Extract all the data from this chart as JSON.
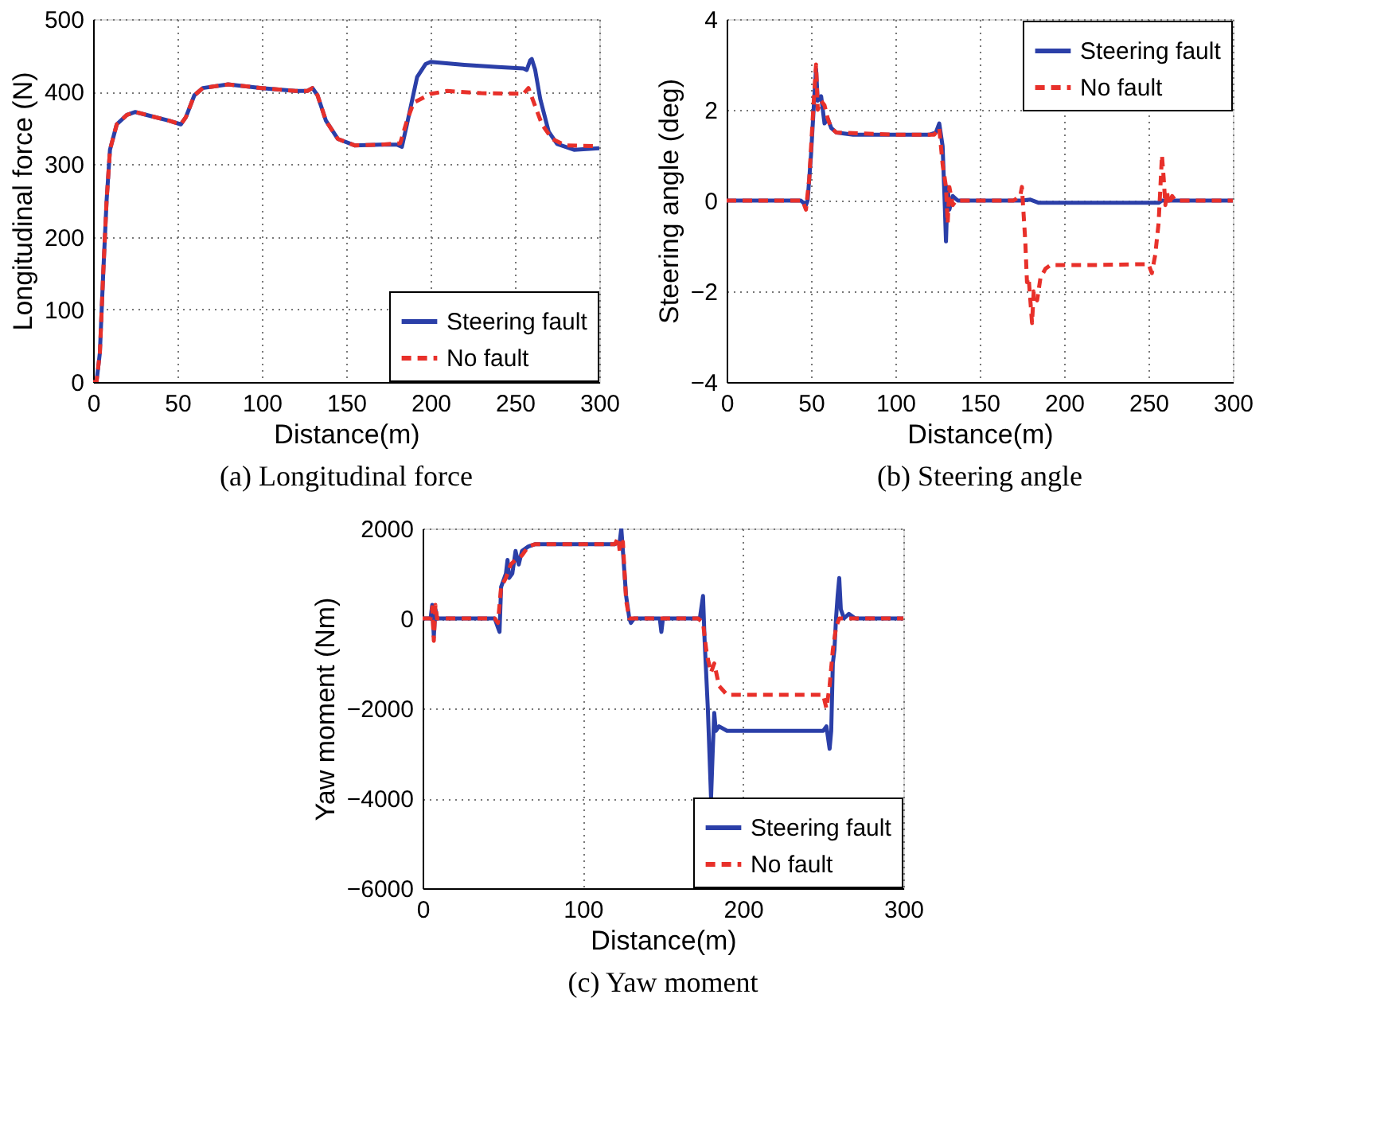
{
  "chart_data": [
    {
      "type": "line",
      "title": "(a)  Longitudinal force",
      "xlabel": "Distance(m)",
      "ylabel": "Longitudinal force (N)",
      "xlim": [
        0,
        300
      ],
      "ylim": [
        0,
        500
      ],
      "xticks": [
        0,
        50,
        100,
        150,
        200,
        250,
        300
      ],
      "yticks": [
        0,
        100,
        200,
        300,
        400,
        500
      ],
      "grid": true,
      "legend": "bottom right",
      "series": [
        {
          "name": "Steering fault",
          "color": "#2b3fa8",
          "line_style": "solid",
          "x": [
            0,
            2,
            4,
            6,
            8,
            10,
            14,
            20,
            25,
            35,
            45,
            52,
            55,
            60,
            65,
            80,
            100,
            120,
            127,
            130,
            133,
            138,
            145,
            155,
            170,
            180,
            183,
            186,
            192,
            197,
            200,
            220,
            240,
            255,
            257,
            259,
            260,
            262,
            265,
            270,
            275,
            285,
            300
          ],
          "values": [
            0,
            0,
            40,
            150,
            250,
            320,
            355,
            368,
            372,
            366,
            360,
            355,
            365,
            395,
            405,
            410,
            405,
            401,
            401,
            405,
            395,
            360,
            335,
            326,
            327,
            327,
            324,
            355,
            420,
            438,
            441,
            437,
            434,
            432,
            430,
            443,
            445,
            430,
            390,
            345,
            328,
            320,
            322
          ]
        },
        {
          "name": "No fault",
          "color": "#e8302a",
          "line_style": "dashed",
          "x": [
            0,
            2,
            4,
            6,
            8,
            10,
            14,
            20,
            25,
            35,
            45,
            52,
            55,
            60,
            65,
            80,
            100,
            120,
            127,
            130,
            133,
            138,
            145,
            155,
            170,
            182,
            186,
            190,
            200,
            210,
            230,
            255,
            258,
            262,
            266,
            272,
            280,
            300
          ],
          "values": [
            0,
            0,
            40,
            150,
            250,
            320,
            355,
            368,
            372,
            366,
            360,
            355,
            365,
            395,
            405,
            410,
            405,
            401,
            401,
            405,
            395,
            360,
            335,
            326,
            327,
            329,
            360,
            385,
            397,
            401,
            398,
            397,
            405,
            380,
            355,
            335,
            326,
            325
          ]
        }
      ]
    },
    {
      "type": "line",
      "title": "(b)  Steering angle",
      "xlabel": "Distance(m)",
      "ylabel": "Steering angle (deg)",
      "xlim": [
        0,
        300
      ],
      "ylim": [
        -4,
        4
      ],
      "xticks": [
        0,
        50,
        100,
        150,
        200,
        250,
        300
      ],
      "yticks": [
        -4,
        -2,
        0,
        2,
        4
      ],
      "grid": true,
      "legend": "top right",
      "series": [
        {
          "name": "Steering fault",
          "color": "#2b3fa8",
          "line_style": "solid",
          "x": [
            0,
            44,
            47,
            48,
            50,
            52,
            53,
            54,
            56,
            58,
            60,
            62,
            65,
            75,
            100,
            120,
            124,
            126,
            128,
            129,
            130,
            131,
            132,
            134,
            137,
            150,
            175,
            180,
            185,
            250,
            256,
            258,
            300
          ],
          "values": [
            0,
            0,
            -0.1,
            0,
            1,
            2.3,
            2.9,
            2.2,
            2.3,
            1.7,
            1.8,
            1.6,
            1.5,
            1.45,
            1.45,
            1.45,
            1.5,
            1.7,
            1.2,
            0.2,
            -0.9,
            0.3,
            -0.2,
            0.1,
            0,
            0,
            0,
            0.02,
            -0.05,
            -0.05,
            -0.05,
            0,
            0
          ]
        },
        {
          "name": "No fault",
          "color": "#e8302a",
          "line_style": "dashed",
          "x": [
            0,
            45,
            47,
            49,
            51,
            53,
            54,
            56,
            58,
            60,
            62,
            65,
            100,
            123,
            126,
            128,
            130,
            131,
            132,
            134,
            136,
            170,
            174,
            175,
            176,
            177,
            178,
            179,
            180,
            181,
            182,
            184,
            186,
            189,
            192,
            220,
            250,
            252,
            254,
            256,
            258,
            259,
            260,
            261,
            262,
            264,
            266,
            300
          ],
          "values": [
            0,
            0,
            -0.2,
            0.5,
            1.8,
            3.0,
            2.0,
            2.2,
            2.1,
            1.8,
            1.6,
            1.5,
            1.45,
            1.45,
            1.6,
            0.8,
            0.3,
            -0.5,
            0.3,
            -0.1,
            0,
            0,
            0.1,
            0.3,
            -0.3,
            -0.9,
            -1.8,
            -1.7,
            -2.2,
            -2.7,
            -2.0,
            -2.2,
            -1.7,
            -1.5,
            -1.42,
            -1.42,
            -1.4,
            -1.6,
            -1.2,
            -0.5,
            1.0,
            0.5,
            -0.1,
            0.2,
            -0.1,
            0.1,
            0,
            0
          ]
        }
      ]
    },
    {
      "type": "line",
      "title": "(c)  Yaw moment",
      "xlabel": "Distance(m)",
      "ylabel": "Yaw moment (Nm)",
      "xlim": [
        0,
        300
      ],
      "ylim": [
        -6000,
        2000
      ],
      "xticks": [
        0,
        100,
        200,
        300
      ],
      "yticks": [
        -6000,
        -4000,
        -2000,
        0,
        2000
      ],
      "grid": true,
      "legend": "bottom right",
      "series": [
        {
          "name": "Steering fault",
          "color": "#2b3fa8",
          "line_style": "solid",
          "x": [
            0,
            5,
            6,
            7,
            8,
            9,
            45,
            47,
            48,
            49,
            52,
            53,
            54,
            56,
            58,
            60,
            62,
            66,
            70,
            100,
            120,
            123,
            124,
            125,
            127,
            129,
            130,
            132,
            148,
            149,
            150,
            170,
            173,
            175,
            176,
            178,
            179,
            180,
            181,
            182,
            183,
            185,
            190,
            250,
            252,
            254,
            255,
            256,
            257,
            258,
            259,
            260,
            261,
            263,
            266,
            270,
            300
          ],
          "values": [
            0,
            0,
            300,
            -400,
            200,
            0,
            0,
            -200,
            -300,
            700,
            1000,
            1300,
            900,
            1000,
            1500,
            1200,
            1500,
            1600,
            1650,
            1650,
            1650,
            1700,
            2000,
            1500,
            500,
            0,
            -100,
            0,
            0,
            -300,
            0,
            0,
            0,
            500,
            -500,
            -2000,
            -3000,
            -4000,
            -3000,
            -2100,
            -2500,
            -2400,
            -2500,
            -2500,
            -2400,
            -2900,
            -2500,
            -1000,
            -700,
            0,
            500,
            900,
            200,
            0,
            100,
            0,
            0
          ]
        },
        {
          "name": "No fault",
          "color": "#e8302a",
          "line_style": "dashed",
          "x": [
            0,
            5,
            6,
            7,
            8,
            9,
            45,
            47,
            49,
            52,
            55,
            58,
            62,
            66,
            70,
            120,
            122,
            123,
            125,
            127,
            129,
            172,
            175,
            177,
            178,
            180,
            182,
            185,
            190,
            250,
            252,
            254,
            256,
            258,
            260,
            300
          ],
          "values": [
            0,
            0,
            250,
            -500,
            300,
            0,
            0,
            -100,
            700,
            900,
            1200,
            1300,
            1400,
            1600,
            1650,
            1650,
            1800,
            1500,
            1700,
            400,
            0,
            0,
            -100,
            -700,
            -900,
            -1200,
            -1000,
            -1500,
            -1700,
            -1700,
            -2000,
            -1500,
            -700,
            -200,
            0,
            0
          ]
        }
      ]
    }
  ]
}
